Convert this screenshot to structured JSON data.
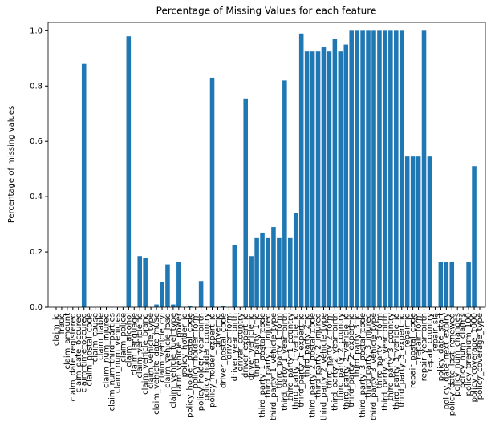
{
  "chart_data": {
    "type": "bar",
    "title": "Percentage of Missing Values for each feature",
    "y_label": "Percentage of missing values",
    "color": "#1f77b4",
    "categories": [
      "claim_id",
      "fraud",
      "claim_amount",
      "claim_date_registered",
      "claim_date_occured",
      "claim_time_occured",
      "claim_postal_code",
      "claim_cause",
      "claim_liable",
      "claim_num_injured",
      "claim_num_third_parties",
      "claim_num_vehicles",
      "claim_police",
      "claim_alcohol",
      "claim_language",
      "claim_vehicle_id",
      "claim_vehicle_brand",
      "claim_vehicle_type",
      "claim_vehicle_date_inuse",
      "claim_vehicle_cyl",
      "claim_vehicle_load",
      "claim_vehicle_fuel_type",
      "claim_vehicle_power",
      "policy_holder_id",
      "policy_holder_postal_code",
      "policy_holder_form",
      "policy_holder_year_birth",
      "policy_holder_country",
      "policy_holder_expert_id",
      "driver_id",
      "driver_postal_code",
      "driver_form",
      "driver_year_birth",
      "driver_country",
      "driver_expert_id",
      "driver_vehicle_id",
      "third_party_1_id",
      "third_party_1_postal_code",
      "third_party_1_injured",
      "third_party_1_vehicle_type",
      "third_party_1_form",
      "third_party_1_year_birth",
      "third_party_1_country",
      "third_party_1_vehicle_id",
      "third_party_1_expert_id",
      "third_party_2_id",
      "third_party_2_postal_code",
      "third_party_2_injured",
      "third_party_2_vehicle_type",
      "third_party_2_form",
      "third_party_2_year_birth",
      "third_party_2_country",
      "third_party_2_vehicle_id",
      "third_party_2_expert_id",
      "third_party_3_id",
      "third_party_3_postal_code",
      "third_party_3_injured",
      "third_party_3_vehicle_type",
      "third_party_3_form",
      "third_party_3_year_birth",
      "third_party_3_country",
      "third_party_3_vehicle_id",
      "third_party_3_expert_id",
      "repair_id",
      "repair_postal_code",
      "repair_form",
      "repair_year_birth",
      "repair_country",
      "repair_sla",
      "policy_date_start",
      "policy_date_next_expiry",
      "policy_date_last_renewed",
      "policy_num_changes",
      "policy_num_claims",
      "policy_premium_100",
      "policy_coverage_1000",
      "policy_coverage_type"
    ],
    "values": [
      0,
      0,
      0,
      0,
      0,
      0.88,
      0,
      0,
      0,
      0,
      0,
      0,
      0,
      0.98,
      0,
      0.185,
      0.18,
      0,
      0.01,
      0.09,
      0.155,
      0.01,
      0.165,
      0,
      0.005,
      0,
      0.095,
      0,
      0.83,
      0,
      0.005,
      0,
      0.225,
      0,
      0.755,
      0.185,
      0.25,
      0.27,
      0.25,
      0.29,
      0.25,
      0.82,
      0.25,
      0.34,
      0.99,
      0.925,
      0.925,
      0.925,
      0.94,
      0.925,
      0.97,
      0.925,
      0.95,
      1.0,
      1.0,
      1.0,
      1.0,
      1.0,
      1.0,
      1.0,
      1.0,
      1.0,
      1.0,
      0.545,
      0.545,
      0.545,
      1.0,
      0.545,
      0,
      0.165,
      0.165,
      0.165,
      0,
      0,
      0.165,
      0.51,
      0
    ],
    "ylim": [
      0,
      1.03
    ],
    "yticks": [
      {
        "value": 0,
        "label": "0.0"
      },
      {
        "value": 0.2,
        "label": "0.2"
      },
      {
        "value": 0.4,
        "label": "0.4"
      },
      {
        "value": 0.6,
        "label": "0.6"
      },
      {
        "value": 0.8,
        "label": "0.8"
      },
      {
        "value": 1.0,
        "label": "1.0"
      }
    ]
  }
}
